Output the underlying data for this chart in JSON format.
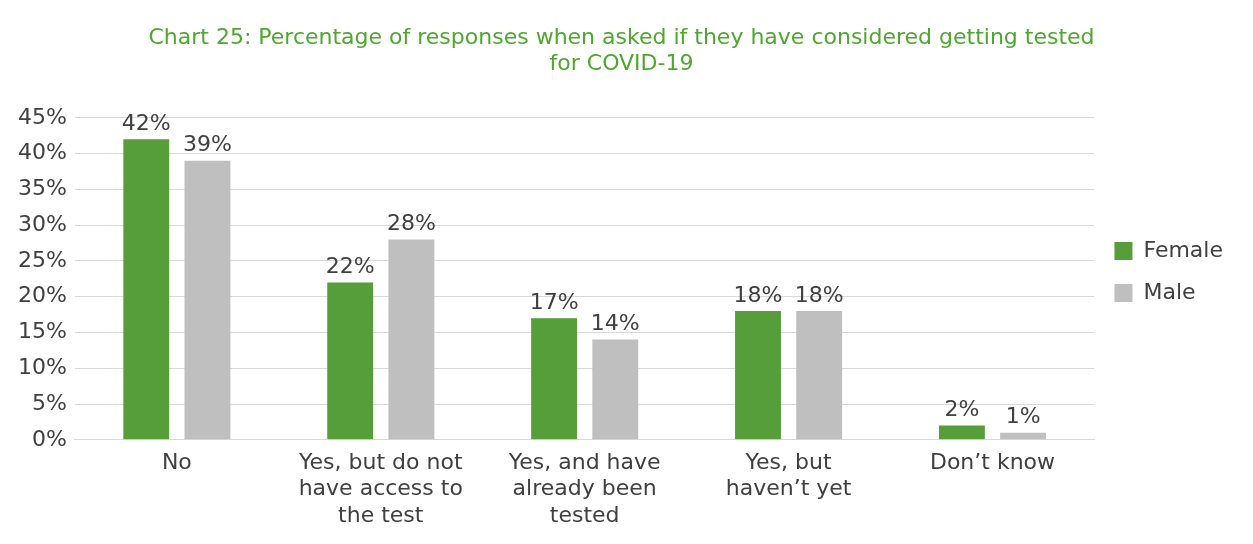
{
  "chart_data": {
    "type": "bar",
    "title": "Chart 25: Percentage of responses when asked if they have considered getting tested for COVID-19",
    "categories": [
      "No",
      "Yes, but do not have access to the test",
      "Yes, and have already been tested",
      "Yes, but haven’t yet",
      "Don’t know"
    ],
    "series": [
      {
        "name": "Female",
        "color": "#559e3a",
        "values": [
          42,
          22,
          17,
          18,
          2
        ],
        "value_labels": [
          "42%",
          "22%",
          "17%",
          "18%",
          "2%"
        ]
      },
      {
        "name": "Male",
        "color": "#bfbfbf",
        "values": [
          39,
          28,
          14,
          18,
          1
        ],
        "value_labels": [
          "39%",
          "28%",
          "14%",
          "18%",
          "1%"
        ]
      }
    ],
    "ylim": [
      0,
      45
    ],
    "yticks": [
      {
        "value": 0,
        "label": "0%"
      },
      {
        "value": 5,
        "label": "5%"
      },
      {
        "value": 10,
        "label": "10%"
      },
      {
        "value": 15,
        "label": "15%"
      },
      {
        "value": 20,
        "label": "20%"
      },
      {
        "value": 25,
        "label": "25%"
      },
      {
        "value": 30,
        "label": "30%"
      },
      {
        "value": 35,
        "label": "35%"
      },
      {
        "value": 40,
        "label": "40%"
      },
      {
        "value": 45,
        "label": "45%"
      }
    ],
    "grid": "y",
    "legend": "right"
  }
}
